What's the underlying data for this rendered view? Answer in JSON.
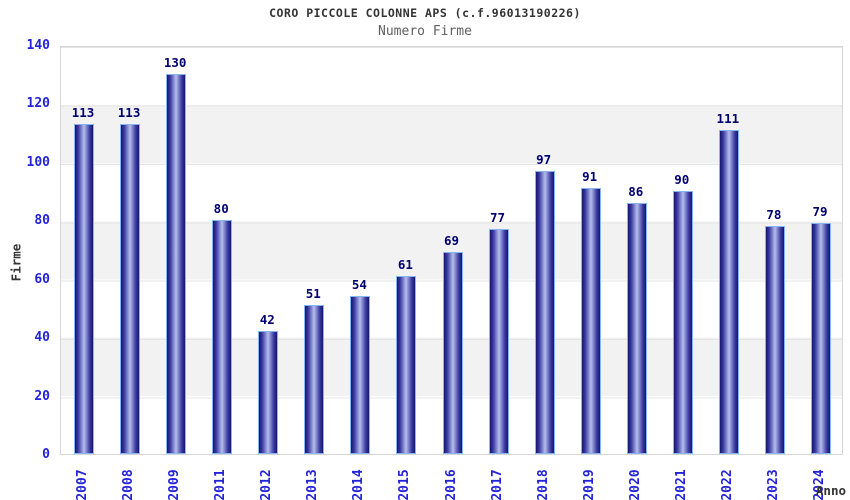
{
  "chart_data": {
    "type": "bar",
    "title": "CORO PICCOLE COLONNE APS (c.f.96013190226)",
    "subtitle": "Numero Firme",
    "xlabel": "Anno",
    "ylabel": "Firme",
    "categories": [
      "2007",
      "2008",
      "2009",
      "2011",
      "2012",
      "2013",
      "2014",
      "2015",
      "2016",
      "2017",
      "2018",
      "2019",
      "2020",
      "2021",
      "2022",
      "2023",
      "2024"
    ],
    "values": [
      113,
      113,
      130,
      80,
      42,
      51,
      54,
      61,
      69,
      77,
      97,
      91,
      86,
      90,
      111,
      78,
      79
    ],
    "ylim": [
      0,
      140
    ],
    "ytick_step": 20,
    "grid": "alternating-horizontal-bands",
    "legend": "none",
    "colors": {
      "title": "#333333",
      "subtitle": "#606060",
      "axis_title": "#333333",
      "tick_label": "#2323d7",
      "value_label": "#000070",
      "bar_edge": "#16166e",
      "bar_mid": "#3a3aa2",
      "bar_center": "#aeb6e8",
      "bar_border": "#85b6f2",
      "band_gray": "#f2f2f2",
      "band_white": "#ffffff",
      "gridline": "#e4e4e4",
      "plot_border": "#d6d6d6"
    }
  }
}
